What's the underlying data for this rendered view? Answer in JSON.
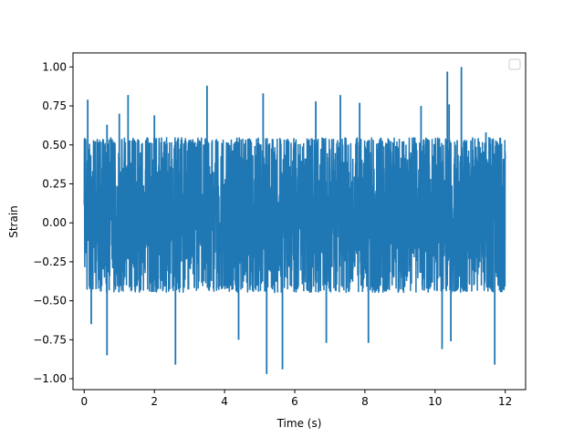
{
  "chart_data": {
    "type": "line",
    "title": "",
    "xlabel": "Time (s)",
    "ylabel": "Strain",
    "xlim": [
      -0.32,
      12.58
    ],
    "ylim": [
      -1.07,
      1.09
    ],
    "xticks": [
      0,
      2,
      4,
      6,
      8,
      10,
      12
    ],
    "xtick_labels": [
      "0",
      "2",
      "4",
      "6",
      "8",
      "10",
      "12"
    ],
    "yticks": [
      -1.0,
      -0.75,
      -0.5,
      -0.25,
      0.0,
      0.25,
      0.5,
      0.75,
      1.0
    ],
    "ytick_labels": [
      "−1.00",
      "−0.75",
      "−0.50",
      "−0.25",
      "0.00",
      "0.25",
      "0.50",
      "0.75",
      "1.00"
    ],
    "grid": false,
    "legend": {
      "placement": "top-right",
      "entries": []
    },
    "colors": {
      "series": "#1f77b4",
      "axes": "#000000",
      "background": "#ffffff"
    },
    "series": [
      {
        "x_start": 0,
        "x_end": 12,
        "envelope_typical": [
          -0.45,
          0.55
        ],
        "value_range": [
          -0.98,
          1.0
        ],
        "peaks": [
          {
            "x": 0.1,
            "y": 0.79
          },
          {
            "x": 0.65,
            "y": 0.63
          },
          {
            "x": 1.0,
            "y": 0.7
          },
          {
            "x": 1.25,
            "y": 0.82
          },
          {
            "x": 2.0,
            "y": 0.69
          },
          {
            "x": 3.5,
            "y": 0.88
          },
          {
            "x": 5.1,
            "y": 0.83
          },
          {
            "x": 6.6,
            "y": 0.78
          },
          {
            "x": 7.3,
            "y": 0.82
          },
          {
            "x": 7.85,
            "y": 0.77
          },
          {
            "x": 9.6,
            "y": 0.75
          },
          {
            "x": 10.4,
            "y": 0.76
          },
          {
            "x": 10.35,
            "y": 0.97
          },
          {
            "x": 10.75,
            "y": 1.0
          },
          {
            "x": 11.45,
            "y": 0.58
          }
        ],
        "troughs": [
          {
            "x": 0.2,
            "y": -0.65
          },
          {
            "x": 0.65,
            "y": -0.85
          },
          {
            "x": 2.6,
            "y": -0.91
          },
          {
            "x": 4.4,
            "y": -0.75
          },
          {
            "x": 5.2,
            "y": -0.97
          },
          {
            "x": 5.65,
            "y": -0.94
          },
          {
            "x": 6.9,
            "y": -0.77
          },
          {
            "x": 8.1,
            "y": -0.77
          },
          {
            "x": 10.2,
            "y": -0.81
          },
          {
            "x": 10.45,
            "y": -0.76
          },
          {
            "x": 11.7,
            "y": -0.91
          }
        ]
      }
    ]
  }
}
